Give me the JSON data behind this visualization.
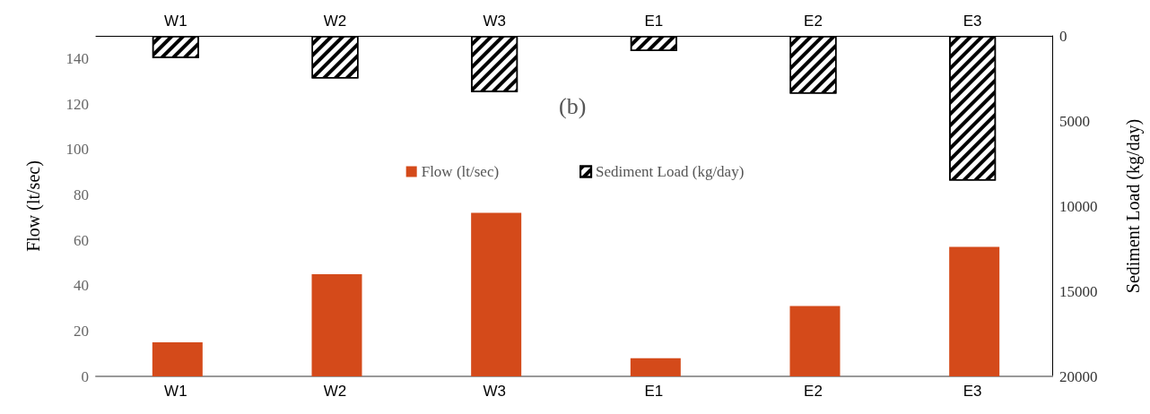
{
  "chart_data": {
    "type": "bar",
    "categories": [
      "W1",
      "W2",
      "W3",
      "E1",
      "E2",
      "E3"
    ],
    "series": [
      {
        "name": "Flow (lt/sec)",
        "color": "#d44a1a",
        "values": [
          15,
          45,
          72,
          8,
          31,
          57
        ]
      },
      {
        "name": "Sediment Load (kg/day)",
        "color": "#000000",
        "axis": "y2",
        "values": [
          1300,
          2500,
          3300,
          900,
          3400,
          8500
        ]
      }
    ],
    "ylabel": "Flow (lt/sec)",
    "y2label": "Sediment Load (kg/day)",
    "ylim": [
      0,
      150
    ],
    "yticks": [
      0,
      20,
      40,
      60,
      80,
      100,
      120,
      140
    ],
    "y2lim": [
      20000,
      0
    ],
    "y2ticks": [
      0,
      5000,
      10000,
      15000,
      20000
    ],
    "annotations": [
      "(b)"
    ],
    "legend": "top",
    "grid": false
  }
}
